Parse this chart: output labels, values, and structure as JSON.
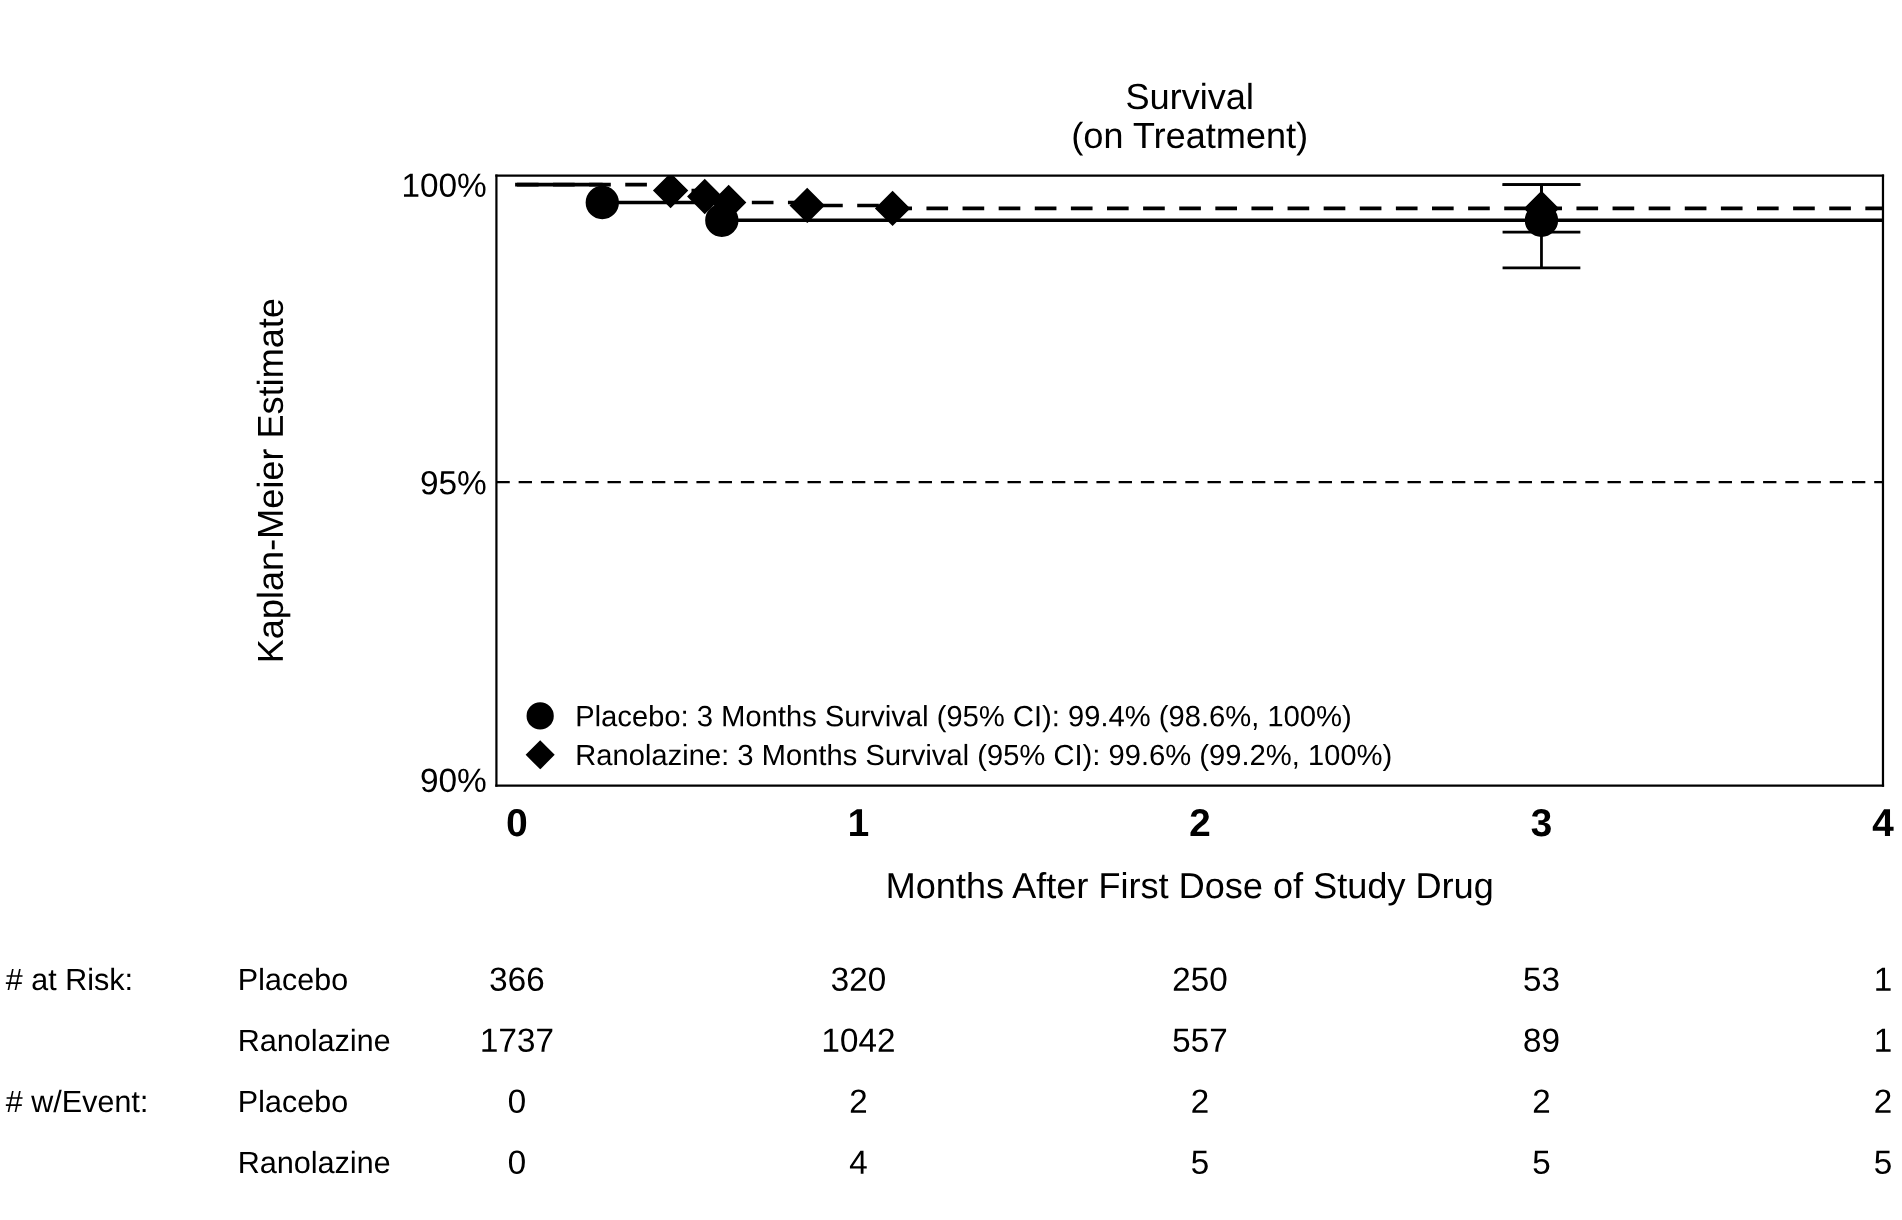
{
  "chart_data": {
    "type": "step",
    "title": "Survival\n(on Treatment)",
    "xlabel": "Months After First Dose of Study Drug",
    "ylabel": "Kaplan-Meier Estimate",
    "xlim": [
      -0.06,
      4.0
    ],
    "xticks": [
      0,
      1,
      2,
      3,
      4
    ],
    "ylim": [
      89.9,
      100.15
    ],
    "yticks": [
      {
        "value": 90,
        "label": "90%"
      },
      {
        "value": 95,
        "label": "95%"
      },
      {
        "value": 100,
        "label": "100%"
      }
    ],
    "grid": false,
    "legend": "bottom left",
    "marker": "none",
    "series": [
      {
        "color": "#000000",
        "line_style": "solid",
        "x": [
          0,
          0.25,
          0.6,
          4.0
        ],
        "values": [
          100,
          99.7,
          99.4,
          99.4
        ]
      },
      {
        "color": "#000000",
        "line_style": "dashed",
        "x": [
          0,
          0.45,
          0.55,
          0.62,
          0.85,
          1.1,
          4.0
        ],
        "values": [
          100,
          99.9,
          99.8,
          99.7,
          99.65,
          99.6,
          99.6
        ]
      },
      {
        "type": "scatter",
        "name": "Placebo: 3 Months Survival (95% CI): 99.4% (98.6%, 100%)",
        "color": "#000000",
        "marker": "circle",
        "x": [
          0.25,
          0.6,
          3
        ],
        "values": [
          99.7,
          99.4,
          99.4
        ],
        "errors": [
          null,
          null,
          [
            98.6,
            100
          ]
        ]
      },
      {
        "type": "scatter",
        "name": "Ranolazine: 3 Months Survival (95% CI): 99.6% (99.2%, 100%)",
        "color": "#000000",
        "marker": "diamond",
        "x": [
          0.45,
          0.55,
          0.62,
          0.85,
          1.1,
          3
        ],
        "values": [
          99.9,
          99.8,
          99.7,
          99.65,
          99.6,
          99.6
        ],
        "errors": [
          null,
          null,
          null,
          null,
          null,
          [
            99.2,
            100
          ]
        ]
      }
    ],
    "ref_lines": [
      {
        "axis": "y",
        "value": 95,
        "color": "#000000",
        "line_style": "dashed"
      }
    ],
    "annotations": [
      "# at Risk:",
      "Placebo",
      "366",
      "320",
      "250",
      "53",
      "1",
      "Ranolazine",
      "1737",
      "1042",
      "557",
      "89",
      "1",
      "# w/Event:",
      "Placebo",
      "0",
      "2",
      "2",
      "2",
      "2",
      "Ranolazine",
      "0",
      "4",
      "5",
      "5",
      "5"
    ]
  }
}
